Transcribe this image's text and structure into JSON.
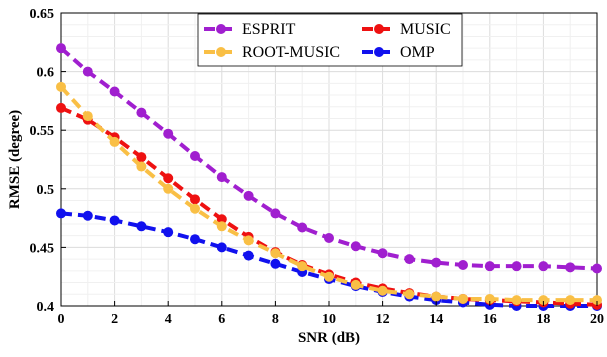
{
  "chart_data": {
    "type": "line",
    "xlabel": "SNR (dB)",
    "ylabel": "RMSE (degree)",
    "xlim": [
      0,
      20
    ],
    "ylim": [
      0.4,
      0.65
    ],
    "xticks": [
      "0",
      "2",
      "4",
      "6",
      "8",
      "10",
      "12",
      "14",
      "16",
      "18",
      "20"
    ],
    "yticks": [
      "0.4",
      "0.45",
      "0.5",
      "0.55",
      "0.6",
      "0.65"
    ],
    "grid": true,
    "legend_position": "top-center",
    "x": [
      0,
      1,
      2,
      3,
      4,
      5,
      6,
      7,
      8,
      9,
      10,
      11,
      12,
      13,
      14,
      15,
      16,
      17,
      18,
      19,
      20
    ],
    "series": [
      {
        "name": "ESPRIT",
        "color": "#a01fcf",
        "values": [
          0.62,
          0.6,
          0.583,
          0.565,
          0.547,
          0.528,
          0.51,
          0.494,
          0.479,
          0.467,
          0.458,
          0.451,
          0.445,
          0.44,
          0.437,
          0.435,
          0.434,
          0.434,
          0.434,
          0.433,
          0.432
        ]
      },
      {
        "name": "ROOT-MUSIC",
        "color": "#f9bf45",
        "values": [
          0.587,
          0.562,
          0.54,
          0.519,
          0.5,
          0.483,
          0.468,
          0.456,
          0.445,
          0.434,
          0.425,
          0.418,
          0.413,
          0.41,
          0.408,
          0.406,
          0.406,
          0.405,
          0.405,
          0.405,
          0.405
        ]
      },
      {
        "name": "MUSIC",
        "color": "#ee1111",
        "values": [
          0.569,
          0.559,
          0.544,
          0.527,
          0.509,
          0.491,
          0.474,
          0.459,
          0.446,
          0.435,
          0.427,
          0.42,
          0.415,
          0.411,
          0.408,
          0.406,
          0.405,
          0.404,
          0.403,
          0.402,
          0.401
        ]
      },
      {
        "name": "OMP",
        "color": "#1111ee",
        "values": [
          0.479,
          0.477,
          0.473,
          0.468,
          0.463,
          0.457,
          0.45,
          0.443,
          0.436,
          0.429,
          0.423,
          0.417,
          0.412,
          0.408,
          0.405,
          0.403,
          0.401,
          0.4,
          0.4,
          0.4,
          0.4
        ]
      }
    ],
    "legend_layout": [
      [
        "ESPRIT",
        "MUSIC"
      ],
      [
        "ROOT-MUSIC",
        "OMP"
      ]
    ]
  }
}
